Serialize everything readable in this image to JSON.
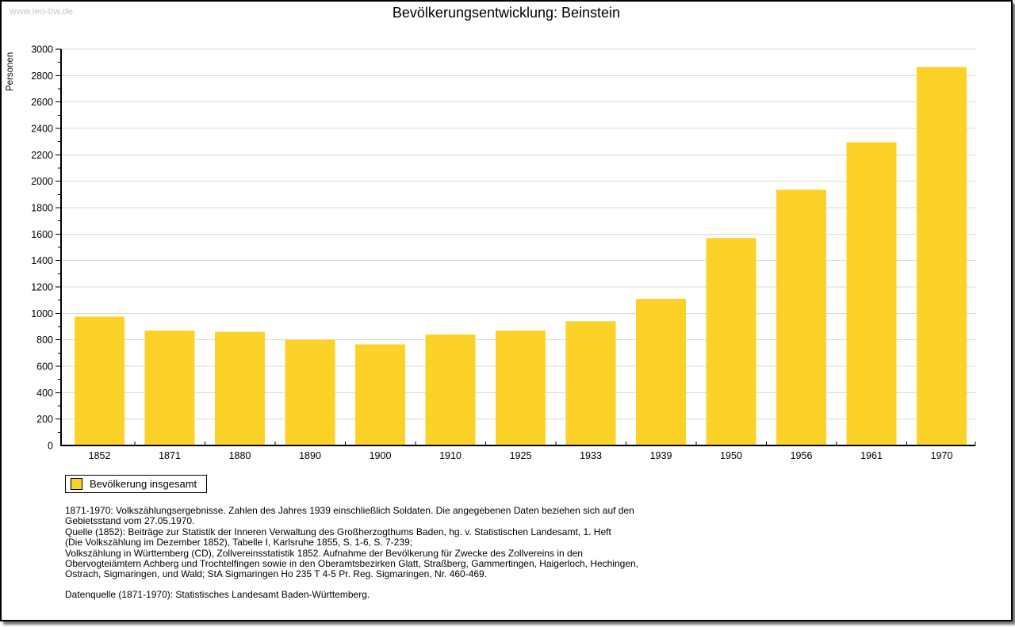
{
  "watermark": "www.leo-bw.de",
  "title": "Bevölkerungsentwicklung: Beinstein",
  "legend": {
    "label": "Bevölkerung insgesamt"
  },
  "chart_data": {
    "type": "bar",
    "title": "Bevölkerungsentwicklung: Beinstein",
    "xlabel": "",
    "ylabel": "Personen",
    "categories": [
      "1852",
      "1871",
      "1880",
      "1890",
      "1900",
      "1910",
      "1925",
      "1933",
      "1939",
      "1950",
      "1956",
      "1961",
      "1970"
    ],
    "values": [
      975,
      870,
      860,
      800,
      765,
      840,
      870,
      940,
      1110,
      1570,
      1935,
      2295,
      2865
    ],
    "series_name": "Bevölkerung insgesamt",
    "ylim": [
      0,
      3000
    ],
    "ytick_step": 200,
    "ytick_minor_step": 100,
    "grid": true,
    "legend_position": "bottom-left"
  },
  "footnotes": {
    "lines": [
      "1871-1970: Volkszählungsergebnisse. Zahlen des Jahres 1939 einschließlich Soldaten. Die angegebenen Daten beziehen sich auf den",
      "Gebietsstand vom 27.05.1970.",
      "Quelle (1852): Beiträge zur Statistik der Inneren Verwaltung des Großherzogthums Baden, hg. v. Statistischen Landesamt, 1. Heft",
      "(Die Volkszählung im Dezember 1852), Tabelle I, Karlsruhe 1855, S. 1-6, S. 7-239;",
      "Volkszählung in Württemberg (CD), Zollvereinsstatistik 1852. Aufnahme der Bevölkerung für Zwecke des Zollvereins in den",
      "Obervogteiämtern Achberg und Trochtelfingen sowie in den Oberamtsbezirken Glatt, Straßberg, Gammertingen, Haigerloch, Hechingen,",
      "Ostrach, Sigmaringen, und Wald; StA Sigmaringen Ho 235 T 4-5 Pr. Reg. Sigmaringen, Nr. 460-469."
    ],
    "datasource": "Datenquelle (1871-1970): Statistisches Landesamt Baden-Württemberg."
  },
  "colors": {
    "bar": "#fcd228",
    "grid": "#d9d9d9",
    "axis": "#000000",
    "text": "#000000",
    "watermark": "#c9c9c9"
  }
}
